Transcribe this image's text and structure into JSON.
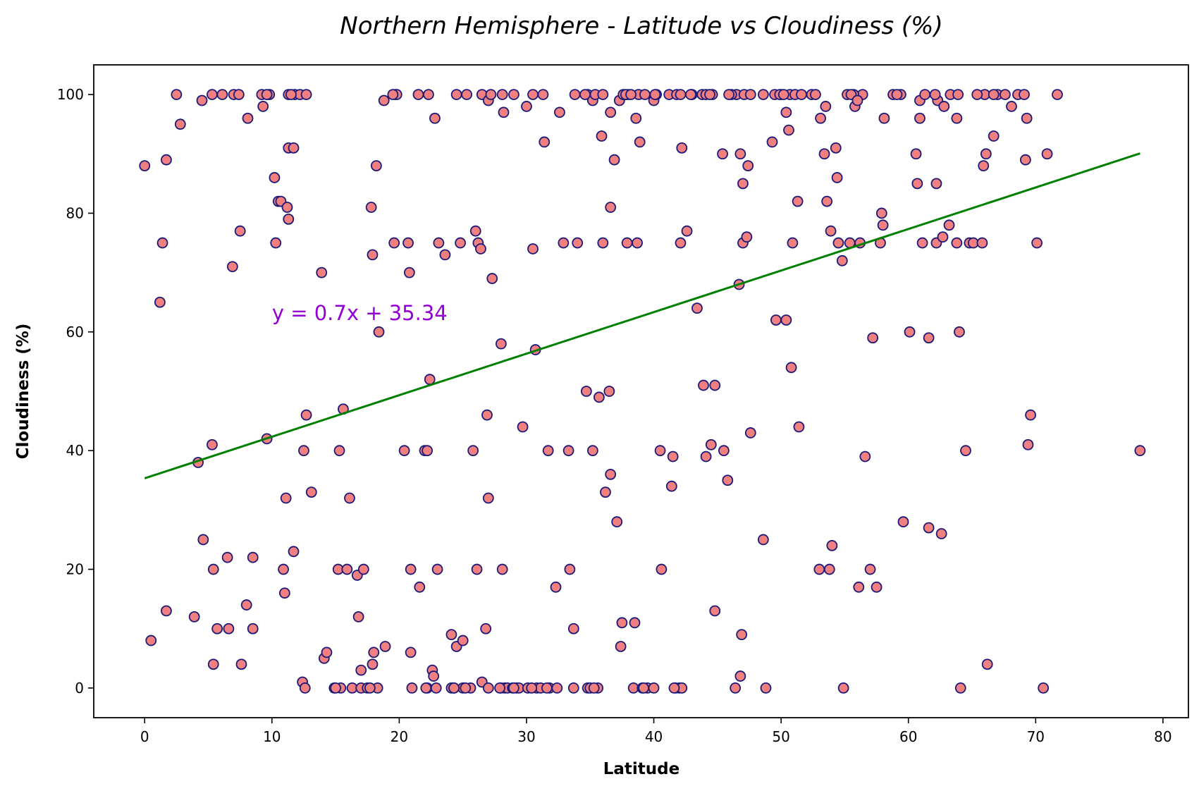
{
  "chart_data": {
    "type": "scatter",
    "title": "Northern Hemisphere - Latitude vs Cloudiness (%)",
    "xlabel": "Latitude",
    "ylabel": "Cloudiness (%)",
    "xlim": [
      -4,
      82
    ],
    "ylim": [
      -5,
      105
    ],
    "xticks": [
      0,
      10,
      20,
      30,
      40,
      50,
      60,
      70,
      80
    ],
    "yticks": [
      0,
      20,
      40,
      60,
      80,
      100
    ],
    "grid": false,
    "marker_fill": "#f08080",
    "marker_edge": "#1a1a7a",
    "regression": {
      "slope": 0.7,
      "intercept": 35.34,
      "x_range": [
        0,
        78.2
      ],
      "color": "#008000",
      "equation_label": "y = 0.7x + 35.34",
      "label_color": "#9400d3",
      "label_at": [
        10,
        62
      ]
    },
    "points": [
      [
        0,
        88
      ],
      [
        0.5,
        8
      ],
      [
        1.2,
        65
      ],
      [
        1.4,
        75
      ],
      [
        1.7,
        89
      ],
      [
        1.7,
        13
      ],
      [
        2.5,
        100
      ],
      [
        2.8,
        95
      ],
      [
        3.9,
        12
      ],
      [
        4.2,
        38
      ],
      [
        4.5,
        99
      ],
      [
        4.6,
        25
      ],
      [
        5.3,
        41
      ],
      [
        5.4,
        20
      ],
      [
        5.4,
        4
      ],
      [
        5.3,
        100
      ],
      [
        5.7,
        10
      ],
      [
        6.1,
        100
      ],
      [
        6.5,
        22
      ],
      [
        6.6,
        10
      ],
      [
        6.9,
        71
      ],
      [
        7.0,
        100
      ],
      [
        7.4,
        100
      ],
      [
        7.5,
        77
      ],
      [
        7.6,
        4
      ],
      [
        8.0,
        14
      ],
      [
        8.1,
        96
      ],
      [
        8.5,
        22
      ],
      [
        8.5,
        10
      ],
      [
        9.2,
        100
      ],
      [
        9.3,
        98
      ],
      [
        9.6,
        42
      ],
      [
        9.8,
        100
      ],
      [
        10.2,
        86
      ],
      [
        10.3,
        75
      ],
      [
        10.5,
        82
      ],
      [
        10.7,
        82
      ],
      [
        10.9,
        20
      ],
      [
        11.0,
        16
      ],
      [
        11.1,
        32
      ],
      [
        11.2,
        81
      ],
      [
        11.3,
        79
      ],
      [
        11.3,
        91
      ],
      [
        11.3,
        100
      ],
      [
        11.7,
        91
      ],
      [
        11.7,
        23
      ],
      [
        11.8,
        100
      ],
      [
        12.2,
        100
      ],
      [
        12.4,
        1
      ],
      [
        12.5,
        40
      ],
      [
        12.6,
        0
      ],
      [
        12.7,
        46
      ],
      [
        12.7,
        100
      ],
      [
        13.1,
        33
      ],
      [
        13.9,
        70
      ],
      [
        14.1,
        5
      ],
      [
        14.3,
        6
      ],
      [
        14.9,
        0
      ],
      [
        15.2,
        20
      ],
      [
        15.3,
        40
      ],
      [
        15.4,
        0
      ],
      [
        15.6,
        47
      ],
      [
        15.9,
        20
      ],
      [
        16.1,
        32
      ],
      [
        16.3,
        0
      ],
      [
        16.7,
        19
      ],
      [
        16.8,
        12
      ],
      [
        17.0,
        0
      ],
      [
        17.0,
        3
      ],
      [
        17.2,
        20
      ],
      [
        17.5,
        0
      ],
      [
        17.8,
        81
      ],
      [
        17.9,
        73
      ],
      [
        17.9,
        4
      ],
      [
        18.0,
        6
      ],
      [
        18.2,
        88
      ],
      [
        18.3,
        0
      ],
      [
        18.4,
        60
      ],
      [
        18.8,
        99
      ],
      [
        18.9,
        7
      ],
      [
        19.6,
        75
      ],
      [
        19.7,
        100
      ],
      [
        19.8,
        100
      ],
      [
        20.4,
        40
      ],
      [
        20.7,
        75
      ],
      [
        20.8,
        70
      ],
      [
        20.9,
        20
      ],
      [
        20.9,
        6
      ],
      [
        21.0,
        0
      ],
      [
        21.5,
        100
      ],
      [
        21.6,
        17
      ],
      [
        22.0,
        40
      ],
      [
        22.2,
        40
      ],
      [
        22.2,
        0
      ],
      [
        22.3,
        100
      ],
      [
        22.4,
        52
      ],
      [
        22.6,
        3
      ],
      [
        22.7,
        2
      ],
      [
        22.8,
        96
      ],
      [
        22.9,
        0
      ],
      [
        23.0,
        20
      ],
      [
        23.1,
        75
      ],
      [
        23.6,
        73
      ],
      [
        24.1,
        9
      ],
      [
        24.1,
        0
      ],
      [
        24.3,
        0
      ],
      [
        24.5,
        7
      ],
      [
        24.5,
        100
      ],
      [
        24.8,
        75
      ],
      [
        25.0,
        8
      ],
      [
        25.0,
        0
      ],
      [
        25.3,
        100
      ],
      [
        25.6,
        0
      ],
      [
        25.8,
        40
      ],
      [
        26.0,
        77
      ],
      [
        26.1,
        20
      ],
      [
        26.2,
        75
      ],
      [
        26.4,
        74
      ],
      [
        26.5,
        100
      ],
      [
        26.5,
        1
      ],
      [
        26.8,
        10
      ],
      [
        26.9,
        46
      ],
      [
        27.0,
        32
      ],
      [
        27.0,
        0
      ],
      [
        27.0,
        99
      ],
      [
        27.2,
        100
      ],
      [
        27.3,
        69
      ],
      [
        28.0,
        58
      ],
      [
        28.0,
        0
      ],
      [
        28.1,
        20
      ],
      [
        28.1,
        100
      ],
      [
        28.2,
        97
      ],
      [
        28.3,
        0
      ],
      [
        28.5,
        0
      ],
      [
        28.9,
        0
      ],
      [
        29.0,
        100
      ],
      [
        29.2,
        0
      ],
      [
        29.4,
        0
      ],
      [
        29.7,
        44
      ],
      [
        30.0,
        98
      ],
      [
        30.1,
        0
      ],
      [
        30.5,
        74
      ],
      [
        30.7,
        57
      ],
      [
        30.8,
        0
      ],
      [
        31.1,
        0
      ],
      [
        31.3,
        100
      ],
      [
        31.4,
        92
      ],
      [
        31.7,
        40
      ],
      [
        31.8,
        0
      ],
      [
        32.3,
        17
      ],
      [
        32.4,
        0
      ],
      [
        32.6,
        97
      ],
      [
        32.9,
        75
      ],
      [
        33.3,
        40
      ],
      [
        33.4,
        20
      ],
      [
        33.7,
        10
      ],
      [
        33.7,
        0
      ],
      [
        33.8,
        100
      ],
      [
        34.0,
        75
      ],
      [
        34.7,
        50
      ],
      [
        34.8,
        100
      ],
      [
        34.8,
        0
      ],
      [
        35.0,
        0
      ],
      [
        35.2,
        40
      ],
      [
        35.2,
        99
      ],
      [
        35.4,
        100
      ],
      [
        35.6,
        0
      ],
      [
        35.7,
        49
      ],
      [
        35.9,
        93
      ],
      [
        36.0,
        100
      ],
      [
        36.0,
        75
      ],
      [
        36.2,
        33
      ],
      [
        36.5,
        50
      ],
      [
        36.6,
        36
      ],
      [
        36.6,
        81
      ],
      [
        36.6,
        97
      ],
      [
        36.9,
        89
      ],
      [
        37.1,
        28
      ],
      [
        37.3,
        99
      ],
      [
        37.4,
        7
      ],
      [
        37.5,
        11
      ],
      [
        37.6,
        100
      ],
      [
        37.9,
        75
      ],
      [
        38.0,
        100
      ],
      [
        38.4,
        0
      ],
      [
        38.5,
        11
      ],
      [
        38.6,
        96
      ],
      [
        38.7,
        75
      ],
      [
        38.8,
        100
      ],
      [
        38.9,
        92
      ],
      [
        39.1,
        0
      ],
      [
        39.3,
        100
      ],
      [
        39.5,
        0
      ],
      [
        40.0,
        99
      ],
      [
        40.0,
        0
      ],
      [
        40.2,
        100
      ],
      [
        40.5,
        40
      ],
      [
        40.6,
        20
      ],
      [
        41.2,
        100
      ],
      [
        41.4,
        34
      ],
      [
        41.5,
        39
      ],
      [
        41.7,
        0
      ],
      [
        41.8,
        100
      ],
      [
        42.0,
        0
      ],
      [
        42.1,
        75
      ],
      [
        42.2,
        0
      ],
      [
        42.2,
        91
      ],
      [
        42.1,
        100
      ],
      [
        42.6,
        77
      ],
      [
        43.0,
        100
      ],
      [
        43.4,
        64
      ],
      [
        43.8,
        100
      ],
      [
        43.9,
        51
      ],
      [
        44.1,
        39
      ],
      [
        44.1,
        100
      ],
      [
        44.5,
        41
      ],
      [
        44.6,
        100
      ],
      [
        44.8,
        51
      ],
      [
        44.8,
        13
      ],
      [
        45.4,
        90
      ],
      [
        45.5,
        40
      ],
      [
        45.8,
        35
      ],
      [
        46.4,
        0
      ],
      [
        46.5,
        100
      ],
      [
        46.7,
        68
      ],
      [
        46.8,
        90
      ],
      [
        46.8,
        2
      ],
      [
        46.9,
        9
      ],
      [
        47.0,
        85
      ],
      [
        47.0,
        75
      ],
      [
        47.1,
        100
      ],
      [
        47.3,
        76
      ],
      [
        47.4,
        88
      ],
      [
        47.6,
        43
      ],
      [
        47.6,
        100
      ],
      [
        48.6,
        25
      ],
      [
        48.8,
        0
      ],
      [
        49.3,
        92
      ],
      [
        49.5,
        100
      ],
      [
        49.6,
        62
      ],
      [
        50.0,
        100
      ],
      [
        50.4,
        97
      ],
      [
        50.4,
        62
      ],
      [
        50.6,
        94
      ],
      [
        50.7,
        100
      ],
      [
        50.8,
        54
      ],
      [
        50.9,
        75
      ],
      [
        51.1,
        100
      ],
      [
        51.3,
        82
      ],
      [
        51.4,
        44
      ],
      [
        52.4,
        100
      ],
      [
        53.0,
        20
      ],
      [
        53.1,
        96
      ],
      [
        53.4,
        90
      ],
      [
        53.5,
        98
      ],
      [
        53.6,
        82
      ],
      [
        53.8,
        20
      ],
      [
        53.9,
        77
      ],
      [
        54.0,
        24
      ],
      [
        54.3,
        91
      ],
      [
        54.4,
        86
      ],
      [
        54.5,
        75
      ],
      [
        54.8,
        72
      ],
      [
        54.9,
        0
      ],
      [
        55.2,
        100
      ],
      [
        55.4,
        75
      ],
      [
        55.8,
        98
      ],
      [
        56.1,
        17
      ],
      [
        56.2,
        75
      ],
      [
        56.4,
        100
      ],
      [
        56.6,
        39
      ],
      [
        57.0,
        20
      ],
      [
        57.2,
        59
      ],
      [
        57.5,
        17
      ],
      [
        57.8,
        75
      ],
      [
        57.9,
        80
      ],
      [
        58.0,
        78
      ],
      [
        58.1,
        96
      ],
      [
        58.8,
        100
      ],
      [
        59.4,
        100
      ],
      [
        59.6,
        28
      ],
      [
        60.1,
        60
      ],
      [
        60.6,
        90
      ],
      [
        60.7,
        85
      ],
      [
        60.9,
        96
      ],
      [
        61.1,
        75
      ],
      [
        61.6,
        59
      ],
      [
        61.6,
        27
      ],
      [
        62.2,
        85
      ],
      [
        62.2,
        75
      ],
      [
        62.3,
        99
      ],
      [
        62.6,
        26
      ],
      [
        62.7,
        76
      ],
      [
        62.8,
        98
      ],
      [
        63.2,
        78
      ],
      [
        63.3,
        100
      ],
      [
        63.8,
        96
      ],
      [
        63.8,
        75
      ],
      [
        64.0,
        60
      ],
      [
        64.1,
        0
      ],
      [
        64.5,
        40
      ],
      [
        64.8,
        75
      ],
      [
        65.1,
        75
      ],
      [
        65.8,
        75
      ],
      [
        65.9,
        88
      ],
      [
        66.0,
        100
      ],
      [
        66.1,
        90
      ],
      [
        66.2,
        4
      ],
      [
        66.7,
        93
      ],
      [
        67.0,
        100
      ],
      [
        67.6,
        100
      ],
      [
        68.1,
        98
      ],
      [
        68.6,
        100
      ],
      [
        69.2,
        89
      ],
      [
        69.3,
        96
      ],
      [
        69.4,
        41
      ],
      [
        69.6,
        46
      ],
      [
        70.1,
        75
      ],
      [
        70.6,
        0
      ],
      [
        70.9,
        90
      ],
      [
        71.7,
        100
      ],
      [
        78.2,
        40
      ],
      [
        40.1,
        100
      ],
      [
        44.4,
        100
      ],
      [
        46.1,
        100
      ],
      [
        49.9,
        100
      ],
      [
        51.6,
        100
      ],
      [
        55.7,
        100
      ],
      [
        59.1,
        100
      ],
      [
        60.9,
        99
      ],
      [
        61.3,
        100
      ],
      [
        62.1,
        100
      ],
      [
        63.9,
        100
      ],
      [
        65.4,
        100
      ],
      [
        66.7,
        100
      ],
      [
        69.1,
        100
      ],
      [
        34.6,
        100
      ],
      [
        37.8,
        100
      ],
      [
        38.2,
        100
      ],
      [
        42.9,
        100
      ],
      [
        45.9,
        100
      ],
      [
        48.6,
        100
      ],
      [
        50.2,
        100
      ],
      [
        52.7,
        100
      ],
      [
        55.5,
        100
      ],
      [
        56.0,
        99
      ],
      [
        24.3,
        0
      ],
      [
        27.9,
        0
      ],
      [
        29.0,
        0
      ],
      [
        30.4,
        0
      ],
      [
        31.6,
        0
      ],
      [
        35.3,
        0
      ],
      [
        39.2,
        0
      ],
      [
        41.6,
        0
      ],
      [
        15.0,
        0
      ],
      [
        17.7,
        0
      ],
      [
        22.1,
        0
      ],
      [
        25.2,
        0
      ],
      [
        9.6,
        100
      ],
      [
        11.5,
        100
      ],
      [
        19.5,
        100
      ],
      [
        30.5,
        100
      ]
    ]
  }
}
